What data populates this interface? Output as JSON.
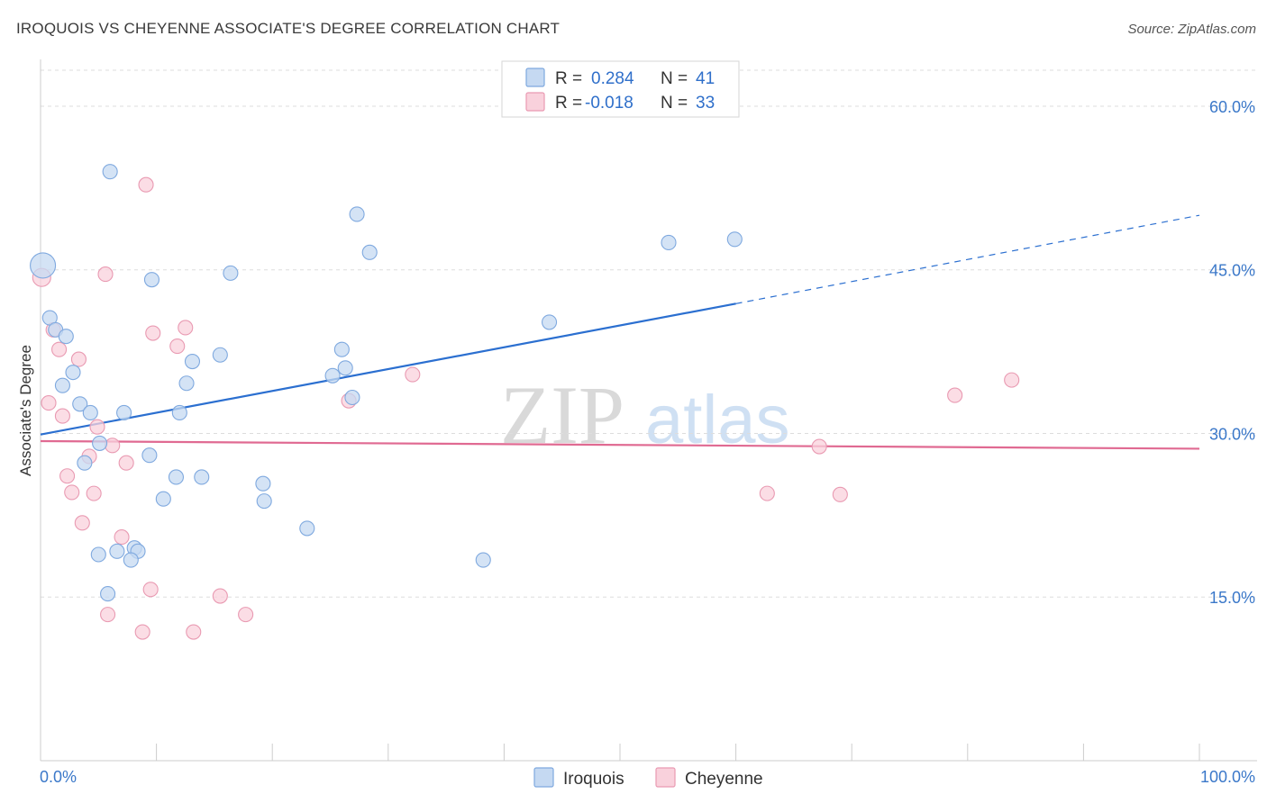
{
  "title": "IROQUOIS VS CHEYENNE ASSOCIATE'S DEGREE CORRELATION CHART",
  "source": "Source: ZipAtlas.com",
  "watermark": {
    "zip": "ZIP",
    "atlas": "atlas"
  },
  "colors": {
    "iroquois_fill": "#c5d9f2",
    "iroquois_stroke": "#7fa9df",
    "iroquois_line": "#2b6fd0",
    "cheyenne_fill": "#f9d1dc",
    "cheyenne_stroke": "#e99ab2",
    "cheyenne_line": "#e06a92",
    "grid": "#dddddd",
    "axis_label": "#3b78c9"
  },
  "legend": {
    "rows": [
      {
        "r_label": "R =",
        "r_value": "0.284",
        "n_label": "N =",
        "n_value": "41",
        "swatch": "blue"
      },
      {
        "r_label": "R =",
        "r_value": "-0.018",
        "n_label": "N =",
        "n_value": "33",
        "swatch": "pink"
      }
    ]
  },
  "bottom_legend": {
    "items": [
      "Iroquois",
      "Cheyenne"
    ]
  },
  "chart_data": {
    "type": "scatter",
    "title": "IROQUOIS VS CHEYENNE ASSOCIATE'S DEGREE CORRELATION CHART",
    "xlabel": "",
    "ylabel": "Associate's Degree",
    "xlim": [
      0,
      100
    ],
    "ylim": [
      0,
      63.3
    ],
    "x_tick_labels": [
      "0.0%",
      "100.0%"
    ],
    "y_ticks": [
      15,
      30,
      45,
      60
    ],
    "y_tick_labels": [
      "15.0%",
      "30.0%",
      "45.0%",
      "60.0%"
    ],
    "grid": true,
    "series": [
      {
        "name": "Iroquois",
        "points": [
          [
            0.2,
            45.4,
            14
          ],
          [
            0.8,
            40.6,
            8
          ],
          [
            1.3,
            39.5,
            8
          ],
          [
            2.2,
            38.9,
            8
          ],
          [
            2.8,
            35.6,
            8
          ],
          [
            1.9,
            34.4,
            8
          ],
          [
            3.4,
            32.7,
            8
          ],
          [
            4.3,
            31.9,
            8
          ],
          [
            7.2,
            31.9,
            8
          ],
          [
            12.0,
            31.9,
            8
          ],
          [
            5.1,
            29.1,
            8
          ],
          [
            3.8,
            27.3,
            8
          ],
          [
            9.4,
            28.0,
            8
          ],
          [
            11.7,
            26.0,
            8
          ],
          [
            13.9,
            26.0,
            8
          ],
          [
            10.6,
            24.0,
            8
          ],
          [
            19.2,
            25.4,
            8
          ],
          [
            19.3,
            23.8,
            8
          ],
          [
            23.0,
            21.3,
            8
          ],
          [
            5.0,
            18.9,
            8
          ],
          [
            6.6,
            19.2,
            8
          ],
          [
            8.1,
            19.5,
            8
          ],
          [
            8.4,
            19.2,
            8
          ],
          [
            7.8,
            18.4,
            8
          ],
          [
            5.8,
            15.3,
            8
          ],
          [
            6.0,
            54.0,
            8
          ],
          [
            9.6,
            44.1,
            8
          ],
          [
            16.4,
            44.7,
            8
          ],
          [
            13.1,
            36.6,
            8
          ],
          [
            12.6,
            34.6,
            8
          ],
          [
            15.5,
            37.2,
            8
          ],
          [
            25.2,
            35.3,
            8
          ],
          [
            26.0,
            37.7,
            8
          ],
          [
            26.3,
            36.0,
            8
          ],
          [
            26.9,
            33.3,
            8
          ],
          [
            27.3,
            50.1,
            8
          ],
          [
            28.4,
            46.6,
            8
          ],
          [
            38.2,
            18.4,
            8
          ],
          [
            43.9,
            40.2,
            8
          ],
          [
            54.2,
            47.5,
            8
          ],
          [
            59.9,
            47.8,
            8
          ]
        ],
        "trend": {
          "x": [
            0,
            60
          ],
          "y": [
            29.9,
            41.9
          ]
        },
        "trend_extended": {
          "x": [
            60,
            100
          ],
          "y": [
            41.9,
            50.0
          ]
        }
      },
      {
        "name": "Cheyenne",
        "points": [
          [
            0.1,
            44.3,
            10
          ],
          [
            1.1,
            39.5,
            8
          ],
          [
            1.6,
            37.7,
            8
          ],
          [
            3.3,
            36.8,
            8
          ],
          [
            0.7,
            32.8,
            8
          ],
          [
            1.9,
            31.6,
            8
          ],
          [
            4.9,
            30.6,
            8
          ],
          [
            6.2,
            28.9,
            8
          ],
          [
            4.2,
            27.9,
            8
          ],
          [
            7.4,
            27.3,
            8
          ],
          [
            2.3,
            26.1,
            8
          ],
          [
            2.7,
            24.6,
            8
          ],
          [
            4.6,
            24.5,
            8
          ],
          [
            3.6,
            21.8,
            8
          ],
          [
            7.0,
            20.5,
            8
          ],
          [
            9.5,
            15.7,
            8
          ],
          [
            15.5,
            15.1,
            8
          ],
          [
            5.8,
            13.4,
            8
          ],
          [
            8.8,
            11.8,
            8
          ],
          [
            13.2,
            11.8,
            8
          ],
          [
            17.7,
            13.4,
            8
          ],
          [
            9.1,
            52.8,
            8
          ],
          [
            5.6,
            44.6,
            8
          ],
          [
            9.7,
            39.2,
            8
          ],
          [
            12.5,
            39.7,
            8
          ],
          [
            11.8,
            38.0,
            8
          ],
          [
            26.6,
            33.0,
            8
          ],
          [
            32.1,
            35.4,
            8
          ],
          [
            67.2,
            28.8,
            8
          ],
          [
            62.7,
            24.5,
            8
          ],
          [
            69.0,
            24.4,
            8
          ],
          [
            78.9,
            33.5,
            8
          ],
          [
            83.8,
            34.9,
            8
          ]
        ],
        "trend": {
          "x": [
            0,
            100
          ],
          "y": [
            29.3,
            28.6
          ]
        }
      }
    ]
  }
}
